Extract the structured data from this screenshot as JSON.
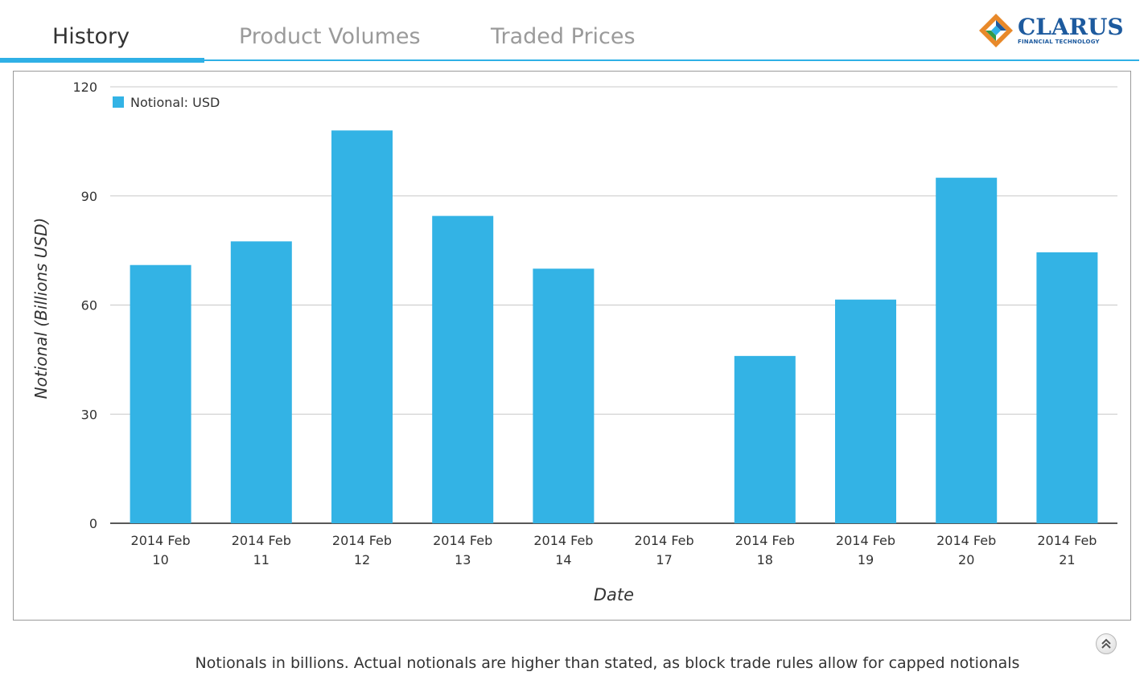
{
  "tabs": [
    {
      "label": "History",
      "active": true
    },
    {
      "label": "Product Volumes",
      "active": false
    },
    {
      "label": "Traded Prices",
      "active": false
    }
  ],
  "logo": {
    "name": "CLARUS",
    "subtitle": "FINANCIAL TECHNOLOGY"
  },
  "footer": {
    "note": "Notionals in billions. Actual notionals are higher than stated, as block trade rules allow for capped notionals"
  },
  "colors": {
    "accent": "#2fb0e6",
    "bar": "#33b3e5"
  },
  "chart_data": {
    "type": "bar",
    "categories": [
      [
        "2014 Feb",
        "10"
      ],
      [
        "2014 Feb",
        "11"
      ],
      [
        "2014 Feb",
        "12"
      ],
      [
        "2014 Feb",
        "13"
      ],
      [
        "2014 Feb",
        "14"
      ],
      [
        "2014 Feb",
        "17"
      ],
      [
        "2014 Feb",
        "18"
      ],
      [
        "2014 Feb",
        "19"
      ],
      [
        "2014 Feb",
        "20"
      ],
      [
        "2014 Feb",
        "21"
      ]
    ],
    "series": [
      {
        "name": "Notional: USD",
        "values": [
          71,
          77.5,
          108,
          84.5,
          70,
          0,
          46,
          61.5,
          95,
          74.5
        ]
      }
    ],
    "xlabel": "Date",
    "ylabel": "Notional (Billions USD)",
    "ylim": [
      0,
      120
    ],
    "yticks": [
      0,
      30,
      60,
      90,
      120
    ],
    "grid": true,
    "legend": "top-left"
  }
}
